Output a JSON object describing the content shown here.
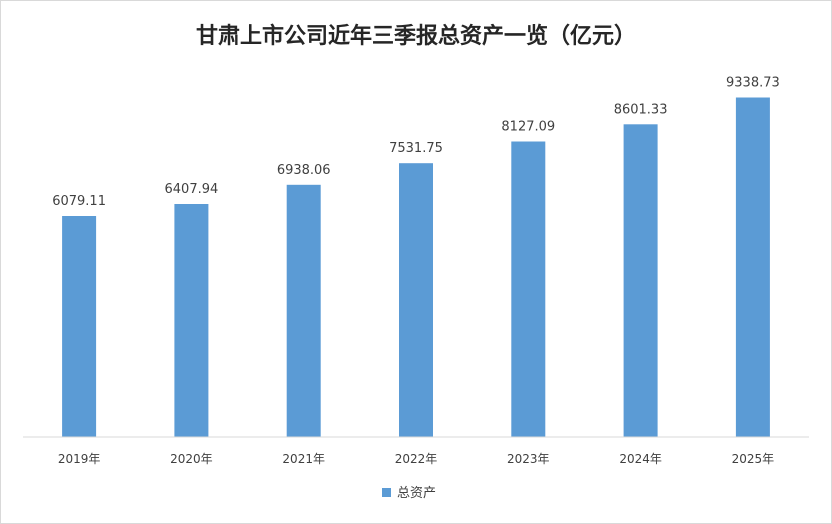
{
  "chart_data": {
    "type": "bar",
    "title": "甘肃上市公司近年三季报总资产一览（亿元）",
    "categories": [
      "2019年",
      "2020年",
      "2021年",
      "2022年",
      "2023年",
      "2024年",
      "2025年"
    ],
    "series": [
      {
        "name": "总资产",
        "values": [
          6079.11,
          6407.94,
          6938.06,
          7531.75,
          8127.09,
          8601.33,
          9338.73
        ],
        "labels": [
          "6079.11",
          "6407.94",
          "6938.06",
          "7531.75",
          "8127.09",
          "8601.33",
          "9338.73"
        ],
        "color": "#5b9bd5"
      }
    ],
    "ylim": [
      0,
      10000
    ],
    "grid": false,
    "legend": "bottom"
  }
}
